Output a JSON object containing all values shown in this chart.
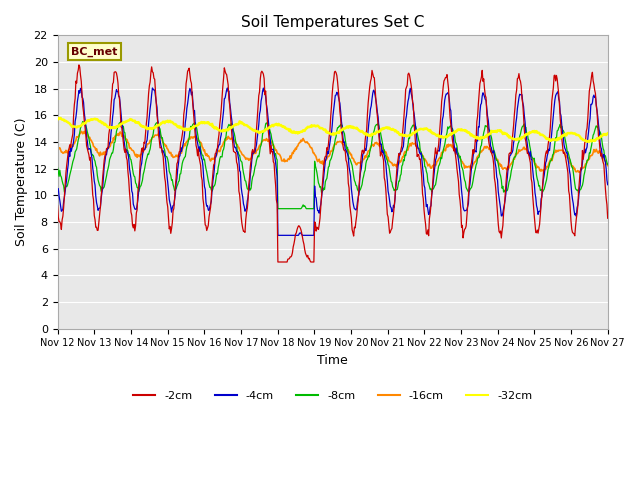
{
  "title": "Soil Temperatures Set C",
  "xlabel": "Time",
  "ylabel": "Soil Temperature (C)",
  "ylim": [
    0,
    22
  ],
  "yticks": [
    0,
    2,
    4,
    6,
    8,
    10,
    12,
    14,
    16,
    18,
    20,
    22
  ],
  "x_labels": [
    "Nov 12",
    "Nov 13",
    "Nov 14",
    "Nov 15",
    "Nov 16",
    "Nov 17",
    "Nov 18",
    "Nov 19",
    "Nov 20",
    "Nov 21",
    "Nov 22",
    "Nov 23",
    "Nov 24",
    "Nov 25",
    "Nov 26",
    "Nov 27"
  ],
  "colors": {
    "-2cm": "#cc0000",
    "-4cm": "#0000cc",
    "-8cm": "#00bb00",
    "-16cm": "#ff8800",
    "-32cm": "#ffff00"
  },
  "legend_label": "BC_met",
  "background_plot": "#e8e8e8",
  "background_fig": "#ffffff",
  "grid_color": "#ffffff",
  "annotation_box_color": "#ffffcc",
  "annotation_box_edge": "#999900"
}
